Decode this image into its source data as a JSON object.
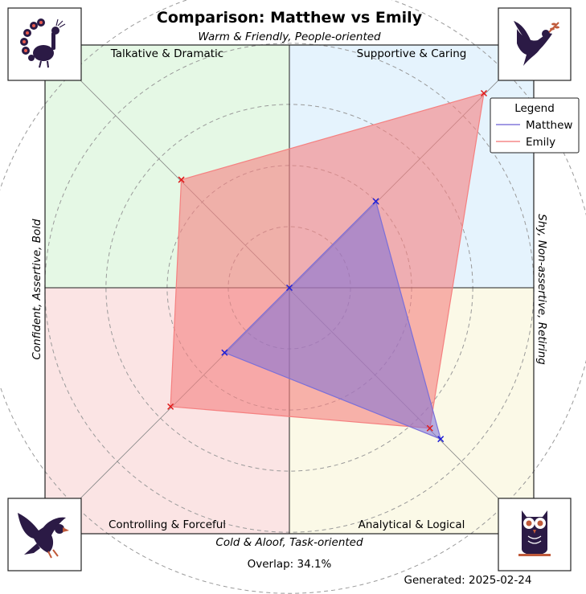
{
  "chart_data": {
    "type": "radar-quadrant",
    "title": "Comparison: Matthew vs Emily",
    "axis_labels": {
      "top": "Warm & Friendly, People-oriented",
      "bottom": "Cold & Aloof, Task-oriented",
      "left": "Confident, Assertive, Bold",
      "right": "Shy, Non-assertive, Retiring"
    },
    "quadrants": [
      {
        "name": "Talkative & Dramatic",
        "position": "top-left",
        "color": "#e5f8e5",
        "icon": "peacock-icon"
      },
      {
        "name": "Supportive & Caring",
        "position": "top-right",
        "color": "#e5f3fd",
        "icon": "dove-icon"
      },
      {
        "name": "Controlling & Forceful",
        "position": "bottom-left",
        "color": "#fbe4e4",
        "icon": "eagle-icon"
      },
      {
        "name": "Analytical & Logical",
        "position": "bottom-right",
        "color": "#fbf9e7",
        "icon": "owl-icon"
      }
    ],
    "radial_max": 10,
    "rings": [
      2,
      4,
      6,
      8,
      10
    ],
    "series": [
      {
        "name": "Matthew",
        "color": "#7b6fd8",
        "marker_color": "#1f1fd6",
        "values": {
          "top-left": 0,
          "top-right": 4,
          "bottom-right": 7,
          "bottom-left": 3
        }
      },
      {
        "name": "Emily",
        "color": "#f58080",
        "marker_color": "#e01a1a",
        "values": {
          "top-left": 5,
          "top-right": 9,
          "bottom-right": 6.5,
          "bottom-left": 5.5
        }
      }
    ],
    "legend": {
      "title": "Legend",
      "placement": "top-right"
    },
    "overlap_text": "Overlap: 34.1%",
    "generated_text": "Generated: 2025-02-24"
  }
}
